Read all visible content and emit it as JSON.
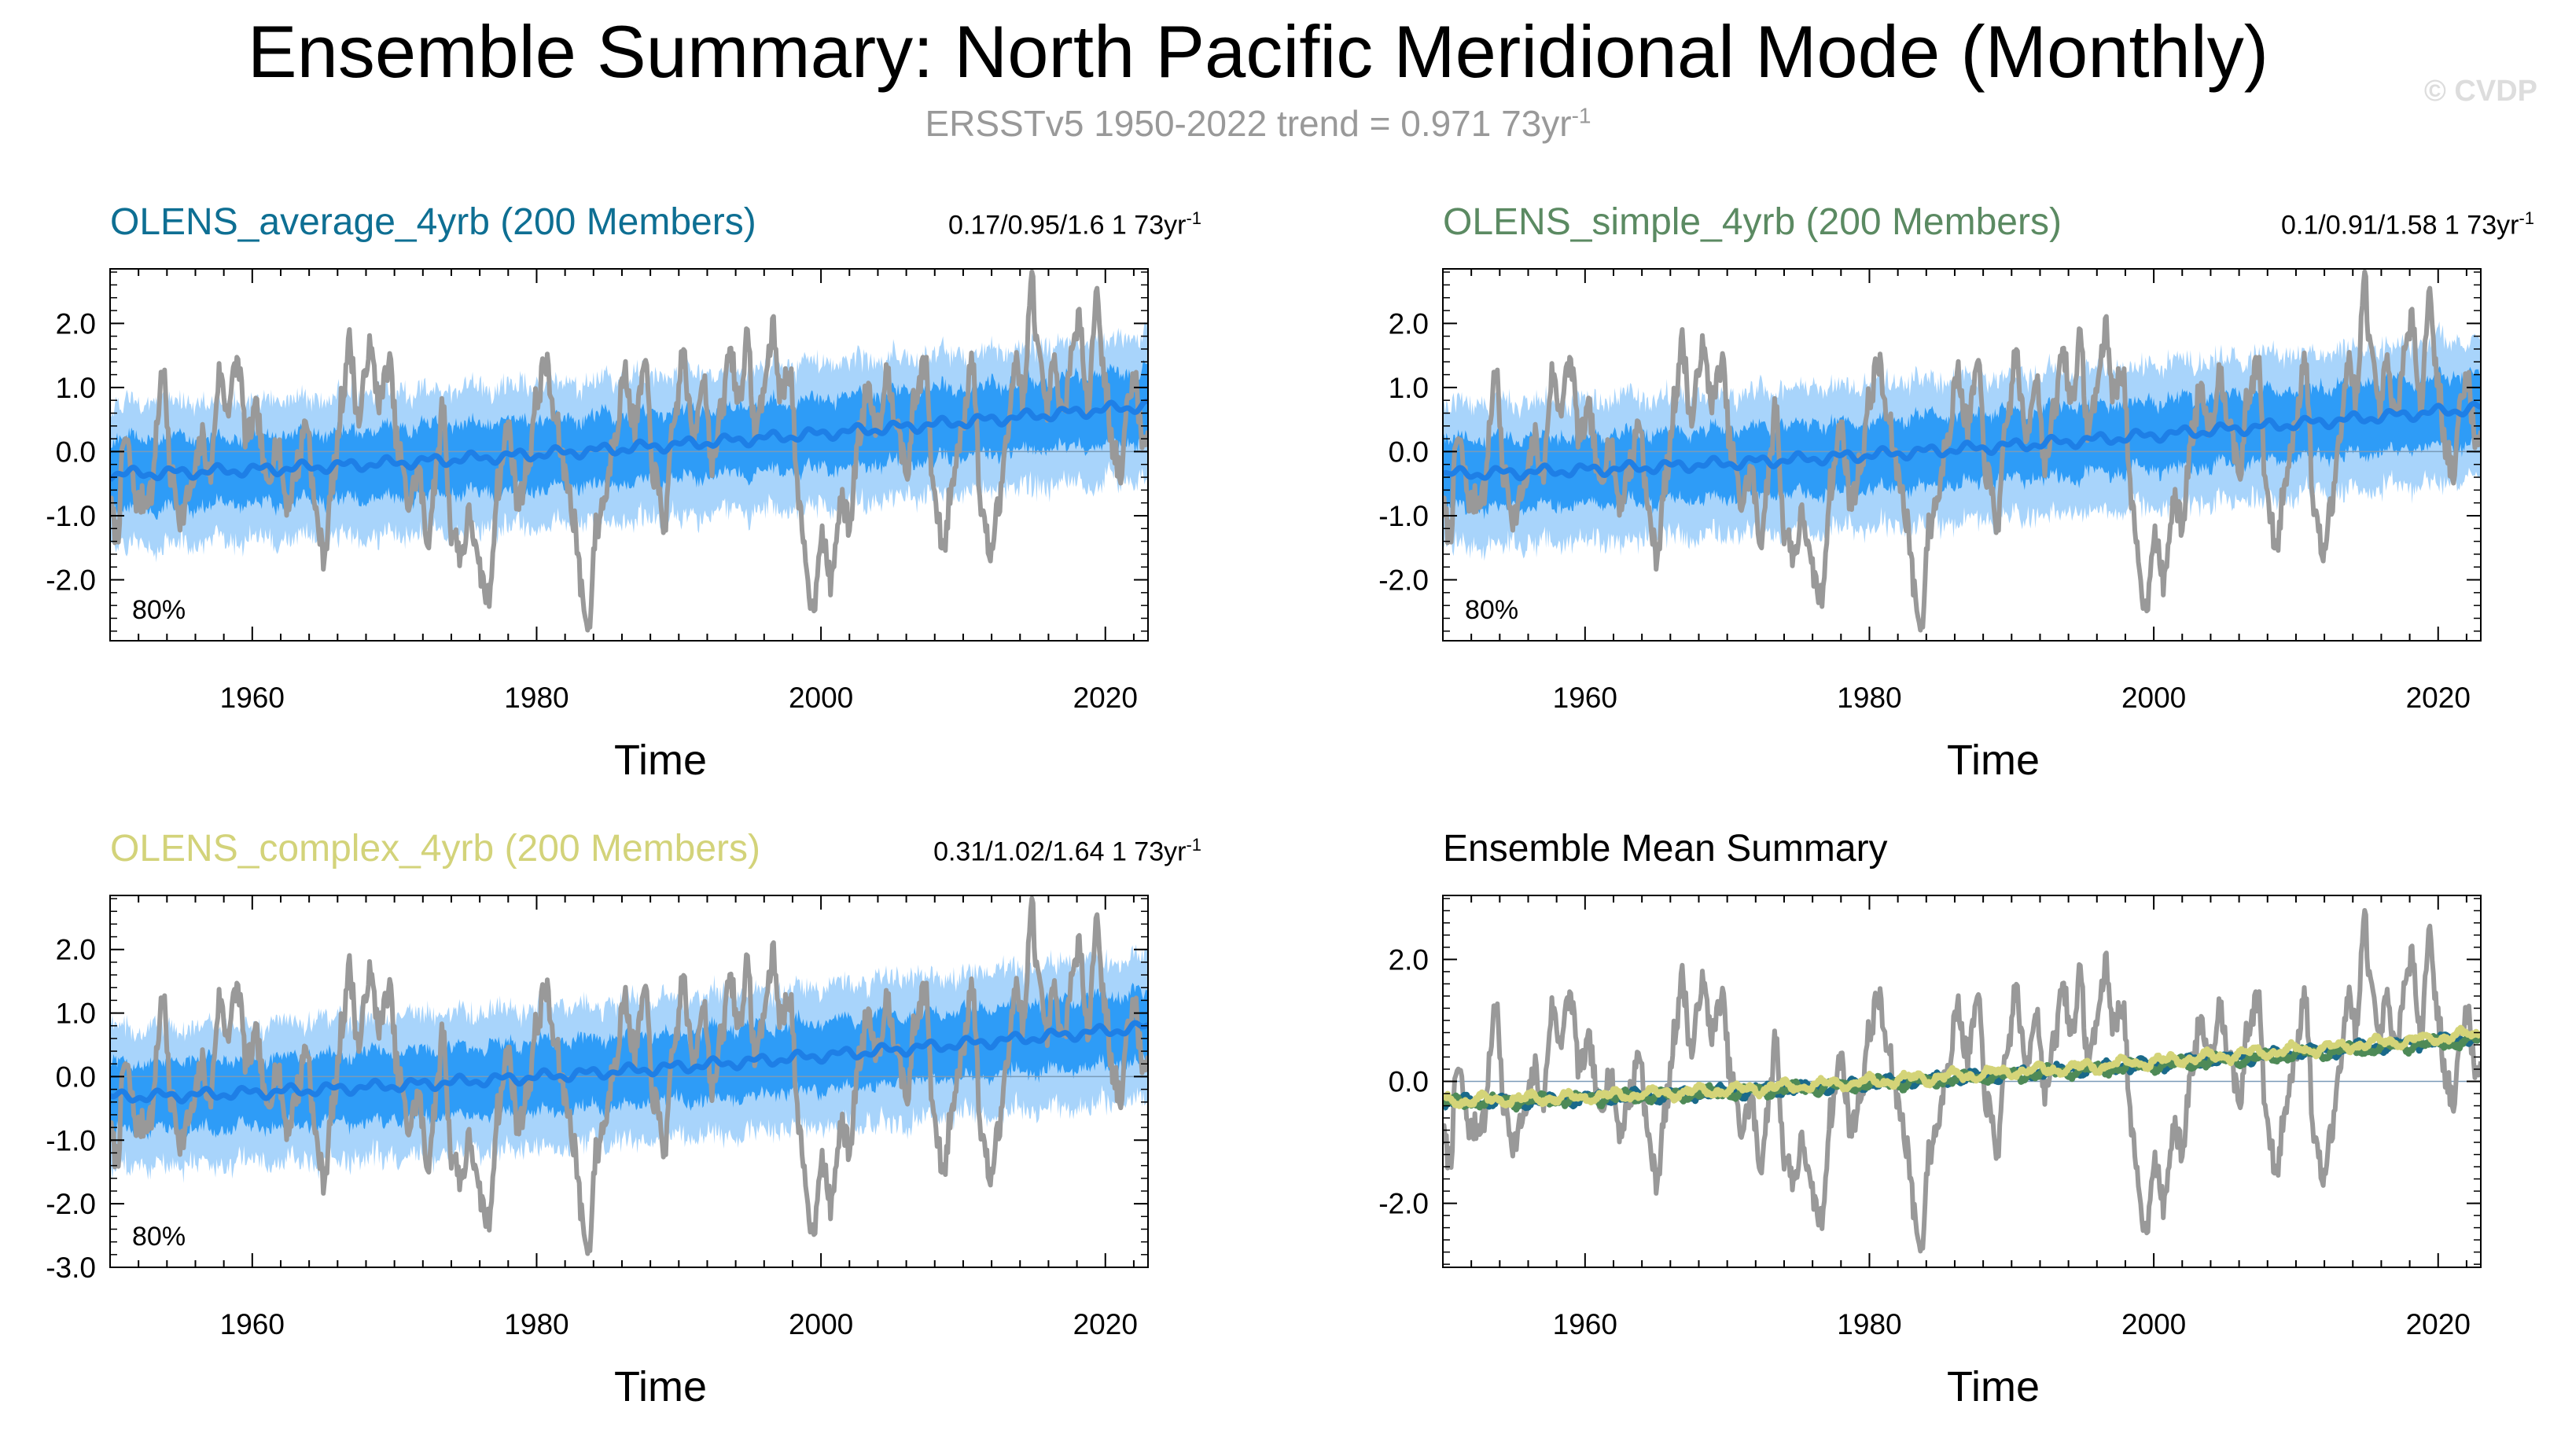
{
  "title": "Ensemble Summary: North Pacific Meridional Mode (Monthly)",
  "subtitle": "ERSSTv5 1950-2022 trend = 0.971 73yr",
  "subtitle_sup": "-1",
  "watermark": "© CVDP",
  "colors": {
    "obs": "#999999",
    "band_outer": "#a8d4fb",
    "band_inner": "#2e9cf7",
    "ens_mean": "#1e7fe6",
    "average_title": "#0e6f93",
    "simple_title": "#5b8a62",
    "complex_title": "#d3d37a",
    "em_simple": "#4e8a57",
    "em_complex": "#d4d478",
    "em_average": "#1a6a8a"
  },
  "chart_data": [
    {
      "type": "line",
      "title": "OLENS_average_4yrb (200 Members)",
      "stat": "0.17/0.95/1.6 1 73yr",
      "stat_sup": "-1",
      "percentile_label": "80%",
      "xlabel": "Time",
      "xlim": [
        1950,
        2023
      ],
      "ylim": [
        -2.95,
        2.85
      ],
      "xticks": [
        1960,
        1980,
        2000,
        2020
      ],
      "yticks": [
        2.0,
        1.0,
        0.0,
        -1.0,
        -2.0
      ],
      "ytick_labels": [
        "2.0",
        "1.0",
        "0.0",
        "-1.0",
        "-2.0"
      ],
      "series": [
        {
          "name": "Observations (ERSSTv5)",
          "style": "obs"
        },
        {
          "name": "Ensemble 10-90% range",
          "style": "band_outer"
        },
        {
          "name": "Ensemble 25-75% range",
          "style": "band_inner"
        },
        {
          "name": "Ensemble mean",
          "style": "ens_mean",
          "start": -0.35,
          "end": 0.72
        }
      ]
    },
    {
      "type": "line",
      "title": "OLENS_simple_4yrb (200 Members)",
      "stat": "0.1/0.91/1.58 1 73yr",
      "stat_sup": "-1",
      "percentile_label": "80%",
      "xlabel": "Time",
      "xlim": [
        1950,
        2023
      ],
      "ylim": [
        -2.95,
        2.85
      ],
      "xticks": [
        1960,
        1980,
        2000,
        2020
      ],
      "yticks": [
        2.0,
        1.0,
        0.0,
        -1.0,
        -2.0
      ],
      "ytick_labels": [
        "2.0",
        "1.0",
        "0.0",
        "-1.0",
        "-2.0"
      ],
      "series": [
        {
          "name": "Observations (ERSSTv5)",
          "style": "obs"
        },
        {
          "name": "Ensemble 10-90% range",
          "style": "band_outer"
        },
        {
          "name": "Ensemble 25-75% range",
          "style": "band_inner"
        },
        {
          "name": "Ensemble mean",
          "style": "ens_mean",
          "start": -0.35,
          "end": 0.68
        }
      ]
    },
    {
      "type": "line",
      "title": "OLENS_complex_4yrb (200 Members)",
      "stat": "0.31/1.02/1.64 1 73yr",
      "stat_sup": "-1",
      "percentile_label": "80%",
      "xlabel": "Time",
      "xlim": [
        1950,
        2023
      ],
      "ylim": [
        -3.0,
        2.85
      ],
      "xticks": [
        1960,
        1980,
        2000,
        2020
      ],
      "yticks": [
        2.0,
        1.0,
        0.0,
        -1.0,
        -2.0,
        -3.0
      ],
      "ytick_labels": [
        "2.0",
        "1.0",
        "0.0",
        "-1.0",
        "-2.0",
        "-3.0"
      ],
      "series": [
        {
          "name": "Observations (ERSSTv5)",
          "style": "obs"
        },
        {
          "name": "Ensemble 10-90% range",
          "style": "band_outer"
        },
        {
          "name": "Ensemble 25-75% range",
          "style": "band_inner"
        },
        {
          "name": "Ensemble mean",
          "style": "ens_mean",
          "start": -0.32,
          "end": 0.78
        }
      ]
    },
    {
      "type": "line",
      "title": "Ensemble Mean Summary",
      "xlabel": "Time",
      "xlim": [
        1950,
        2023
      ],
      "ylim": [
        -3.05,
        3.05
      ],
      "xticks": [
        1960,
        1980,
        2000,
        2020
      ],
      "yticks": [
        2.0,
        0.0,
        -2.0
      ],
      "ytick_labels": [
        "2.0",
        "0.0",
        "-2.0"
      ],
      "series": [
        {
          "name": "Observations (ERSSTv5)",
          "style": "obs"
        },
        {
          "name": "OLENS_average_4yrb mean",
          "style": "em_average",
          "start": -0.35,
          "end": 0.72
        },
        {
          "name": "OLENS_simple_4yrb mean",
          "style": "em_simple",
          "start": -0.35,
          "end": 0.68
        },
        {
          "name": "OLENS_complex_4yrb mean",
          "style": "em_complex",
          "start": -0.32,
          "end": 0.78
        }
      ]
    }
  ],
  "obs_anchors": [
    [
      1950.0,
      -0.9
    ],
    [
      1950.5,
      -1.3
    ],
    [
      1951.0,
      0.2
    ],
    [
      1952.0,
      -0.8
    ],
    [
      1953.0,
      -0.6
    ],
    [
      1953.3,
      0.5
    ],
    [
      1953.7,
      1.3
    ],
    [
      1954.3,
      -0.4
    ],
    [
      1955.0,
      -1.0
    ],
    [
      1955.7,
      -0.6
    ],
    [
      1956.5,
      0.2
    ],
    [
      1957.0,
      -0.4
    ],
    [
      1957.7,
      1.2
    ],
    [
      1958.2,
      0.7
    ],
    [
      1959.0,
      1.4
    ],
    [
      1959.6,
      0.2
    ],
    [
      1960.3,
      0.6
    ],
    [
      1961.0,
      -0.5
    ],
    [
      1961.7,
      0.1
    ],
    [
      1962.5,
      -0.8
    ],
    [
      1963.2,
      -0.2
    ],
    [
      1963.8,
      0.5
    ],
    [
      1964.5,
      -1.0
    ],
    [
      1965.0,
      -1.6
    ],
    [
      1965.8,
      -0.3
    ],
    [
      1966.3,
      0.8
    ],
    [
      1966.8,
      1.7
    ],
    [
      1967.5,
      0.5
    ],
    [
      1968.2,
      1.6
    ],
    [
      1969.0,
      0.8
    ],
    [
      1969.6,
      1.4
    ],
    [
      1970.3,
      0.0
    ],
    [
      1971.0,
      -0.8
    ],
    [
      1971.7,
      -0.3
    ],
    [
      1972.3,
      -1.4
    ],
    [
      1972.9,
      -0.4
    ],
    [
      1973.4,
      0.7
    ],
    [
      1974.0,
      -1.2
    ],
    [
      1974.7,
      -1.6
    ],
    [
      1975.3,
      -1.0
    ],
    [
      1976.0,
      -1.9
    ],
    [
      1976.6,
      -2.3
    ],
    [
      1977.3,
      -0.5
    ],
    [
      1978.0,
      0.4
    ],
    [
      1978.7,
      -0.8
    ],
    [
      1979.4,
      -0.2
    ],
    [
      1980.0,
      0.8
    ],
    [
      1980.6,
      1.4
    ],
    [
      1981.3,
      0.5
    ],
    [
      1982.0,
      -0.3
    ],
    [
      1982.6,
      -1.0
    ],
    [
      1983.2,
      -2.2
    ],
    [
      1983.6,
      -2.8
    ],
    [
      1984.2,
      -1.2
    ],
    [
      1984.8,
      -0.7
    ],
    [
      1985.5,
      0.3
    ],
    [
      1986.2,
      1.2
    ],
    [
      1986.9,
      0.4
    ],
    [
      1987.6,
      1.3
    ],
    [
      1988.3,
      -0.4
    ],
    [
      1989.0,
      -1.1
    ],
    [
      1989.7,
      0.5
    ],
    [
      1990.3,
      1.5
    ],
    [
      1991.0,
      0.2
    ],
    [
      1991.7,
      1.2
    ],
    [
      1992.4,
      -0.2
    ],
    [
      1993.0,
      0.6
    ],
    [
      1993.6,
      1.6
    ],
    [
      1994.2,
      0.8
    ],
    [
      1994.8,
      1.7
    ],
    [
      1995.4,
      0.3
    ],
    [
      1996.0,
      1.0
    ],
    [
      1996.6,
      1.9
    ],
    [
      1997.2,
      0.9
    ],
    [
      1997.8,
      1.3
    ],
    [
      1998.5,
      -1.0
    ],
    [
      1999.0,
      -1.8
    ],
    [
      1999.4,
      -2.5
    ],
    [
      2000.0,
      -1.3
    ],
    [
      2000.7,
      -2.0
    ],
    [
      2001.4,
      -0.8
    ],
    [
      2002.0,
      -1.1
    ],
    [
      2002.7,
      0.3
    ],
    [
      2003.3,
      1.0
    ],
    [
      2004.0,
      0.4
    ],
    [
      2004.6,
      1.2
    ],
    [
      2005.3,
      0.6
    ],
    [
      2006.0,
      -0.4
    ],
    [
      2006.6,
      0.8
    ],
    [
      2007.3,
      1.4
    ],
    [
      2008.0,
      -0.8
    ],
    [
      2008.6,
      -1.5
    ],
    [
      2009.3,
      -0.4
    ],
    [
      2010.0,
      0.5
    ],
    [
      2010.6,
      1.5
    ],
    [
      2011.3,
      -0.9
    ],
    [
      2011.9,
      -1.6
    ],
    [
      2012.5,
      -0.9
    ],
    [
      2013.1,
      0.4
    ],
    [
      2013.7,
      1.4
    ],
    [
      2014.3,
      0.8
    ],
    [
      2014.8,
      2.7
    ],
    [
      2015.3,
      1.5
    ],
    [
      2015.8,
      0.6
    ],
    [
      2016.4,
      1.3
    ],
    [
      2017.0,
      0.5
    ],
    [
      2017.6,
      1.5
    ],
    [
      2018.2,
      2.0
    ],
    [
      2018.8,
      0.8
    ],
    [
      2019.4,
      2.5
    ],
    [
      2020.0,
      1.0
    ],
    [
      2020.6,
      0.0
    ],
    [
      2021.1,
      -0.4
    ],
    [
      2021.6,
      0.8
    ],
    [
      2022.1,
      1.2
    ],
    [
      2022.6,
      0.1
    ],
    [
      2023.0,
      0.4
    ]
  ]
}
